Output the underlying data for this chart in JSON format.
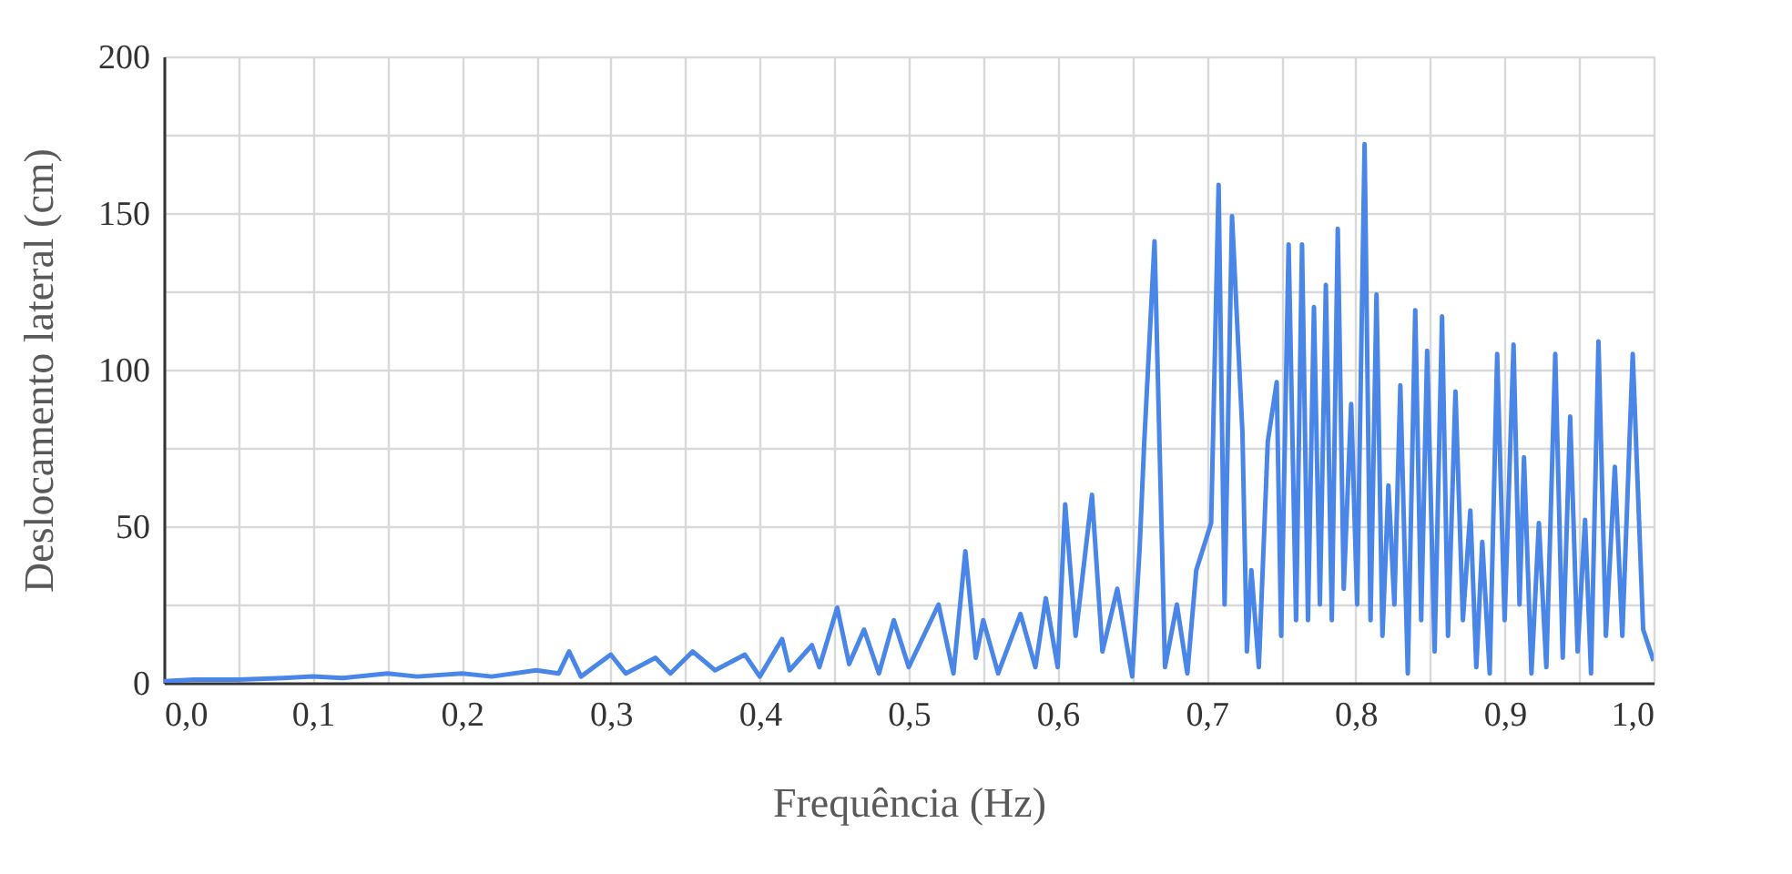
{
  "chart_data": {
    "type": "line",
    "xlabel": "Frequência (Hz)",
    "ylabel": "Deslocamento lateral (cm)",
    "grid": true,
    "xlim": [
      0,
      1
    ],
    "ylim": [
      0,
      200
    ],
    "xticks": [
      {
        "value": 0,
        "label": "0,0"
      },
      {
        "value": 0.05,
        "label": null
      },
      {
        "value": 0.1,
        "label": "0,1"
      },
      {
        "value": 0.15,
        "label": null
      },
      {
        "value": 0.2,
        "label": "0,2"
      },
      {
        "value": 0.25,
        "label": null
      },
      {
        "value": 0.3,
        "label": "0,3"
      },
      {
        "value": 0.35,
        "label": null
      },
      {
        "value": 0.4,
        "label": "0,4"
      },
      {
        "value": 0.45,
        "label": null
      },
      {
        "value": 0.5,
        "label": "0,5"
      },
      {
        "value": 0.55,
        "label": null
      },
      {
        "value": 0.6,
        "label": "0,6"
      },
      {
        "value": 0.65,
        "label": null
      },
      {
        "value": 0.7,
        "label": "0,7"
      },
      {
        "value": 0.75,
        "label": null
      },
      {
        "value": 0.8,
        "label": "0,8"
      },
      {
        "value": 0.85,
        "label": null
      },
      {
        "value": 0.9,
        "label": "0,9"
      },
      {
        "value": 0.95,
        "label": null
      },
      {
        "value": 1,
        "label": "1,0"
      }
    ],
    "yticks": [
      0,
      {
        "value": 25,
        "label": null
      },
      50,
      {
        "value": 75,
        "label": null
      },
      100,
      {
        "value": 125,
        "label": null
      },
      150,
      {
        "value": 175,
        "label": null
      },
      200
    ],
    "x": [
      0,
      0.02,
      0.05,
      0.08,
      0.1,
      0.12,
      0.15,
      0.17,
      0.2,
      0.22,
      0.25,
      0.265,
      0.272,
      0.28,
      0.3,
      0.31,
      0.33,
      0.34,
      0.355,
      0.37,
      0.39,
      0.4,
      0.415,
      0.42,
      0.435,
      0.44,
      0.452,
      0.46,
      0.47,
      0.48,
      0.49,
      0.5,
      0.52,
      0.53,
      0.538,
      0.545,
      0.55,
      0.56,
      0.575,
      0.585,
      0.592,
      0.6,
      0.605,
      0.612,
      0.623,
      0.63,
      0.64,
      0.65,
      0.655,
      0.658,
      0.665,
      0.672,
      0.68,
      0.687,
      0.693,
      0.703,
      0.708,
      0.712,
      0.717,
      0.724,
      0.727,
      0.73,
      0.735,
      0.741,
      0.747,
      0.75,
      0.755,
      0.76,
      0.764,
      0.768,
      0.772,
      0.776,
      0.78,
      0.784,
      0.788,
      0.792,
      0.797,
      0.801,
      0.806,
      0.81,
      0.814,
      0.818,
      0.822,
      0.826,
      0.83,
      0.835,
      0.84,
      0.844,
      0.848,
      0.853,
      0.858,
      0.862,
      0.867,
      0.872,
      0.877,
      0.881,
      0.885,
      0.89,
      0.895,
      0.9,
      0.906,
      0.91,
      0.913,
      0.918,
      0.923,
      0.928,
      0.934,
      0.939,
      0.944,
      0.949,
      0.954,
      0.958,
      0.963,
      0.968,
      0.974,
      0.979,
      0.986,
      0.993,
      1
    ],
    "series": [
      {
        "color": "#4a86e8",
        "values": [
          0.5,
          1,
          1,
          1.5,
          2,
          1.5,
          3,
          2,
          3,
          2,
          4,
          3,
          10,
          2,
          9,
          3,
          8,
          3,
          10,
          4,
          9,
          2,
          14,
          4,
          12,
          5,
          24,
          6,
          17,
          3,
          20,
          5,
          25,
          3,
          42,
          8,
          20,
          3,
          22,
          5,
          27,
          5,
          57,
          15,
          60,
          10,
          30,
          2,
          43,
          76,
          141,
          5,
          25,
          3,
          36,
          51,
          159,
          25,
          149,
          80,
          10,
          36,
          5,
          77,
          96,
          15,
          140,
          20,
          140,
          20,
          120,
          25,
          127,
          20,
          145,
          30,
          89,
          25,
          172,
          20,
          124,
          15,
          63,
          25,
          95,
          3,
          119,
          20,
          106,
          10,
          117,
          15,
          93,
          20,
          55,
          5,
          45,
          3,
          105,
          20,
          108,
          25,
          72,
          3,
          51,
          5,
          105,
          8,
          85,
          10,
          52,
          3,
          109,
          15,
          69,
          15,
          105,
          17,
          7
        ]
      }
    ]
  }
}
